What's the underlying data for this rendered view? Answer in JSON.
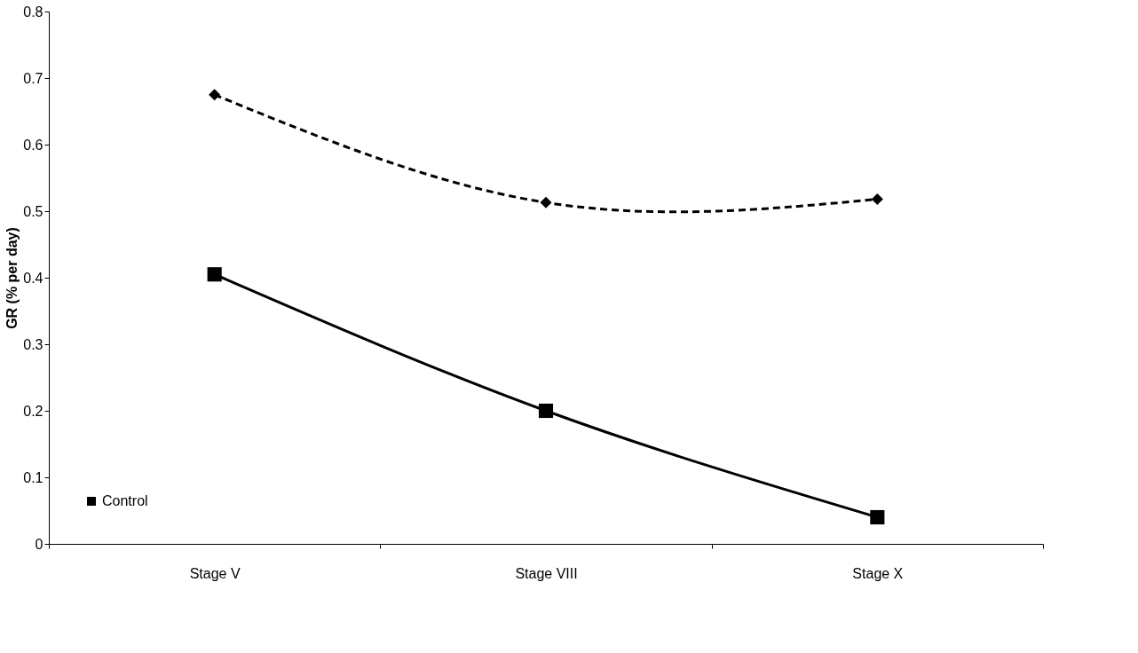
{
  "chart_data": {
    "type": "line",
    "ylabel": "GR (% per day)",
    "categories": [
      "Stage V",
      "Stage VIII",
      "Stage X"
    ],
    "series": [
      {
        "color": "#000000",
        "values": [
          0.675,
          0.513,
          0.518
        ],
        "marker": "diamond",
        "line_style": "dashed"
      },
      {
        "name": "Control",
        "color": "#000000",
        "values": [
          0.405,
          0.2,
          0.04
        ],
        "marker": "square",
        "line_style": "solid"
      }
    ],
    "ylim": [
      0,
      0.8
    ],
    "yticks": [
      0,
      0.1,
      0.2,
      0.3,
      0.4,
      0.5,
      0.6,
      0.7,
      0.8
    ],
    "grid": false,
    "legend": "bottom left"
  }
}
